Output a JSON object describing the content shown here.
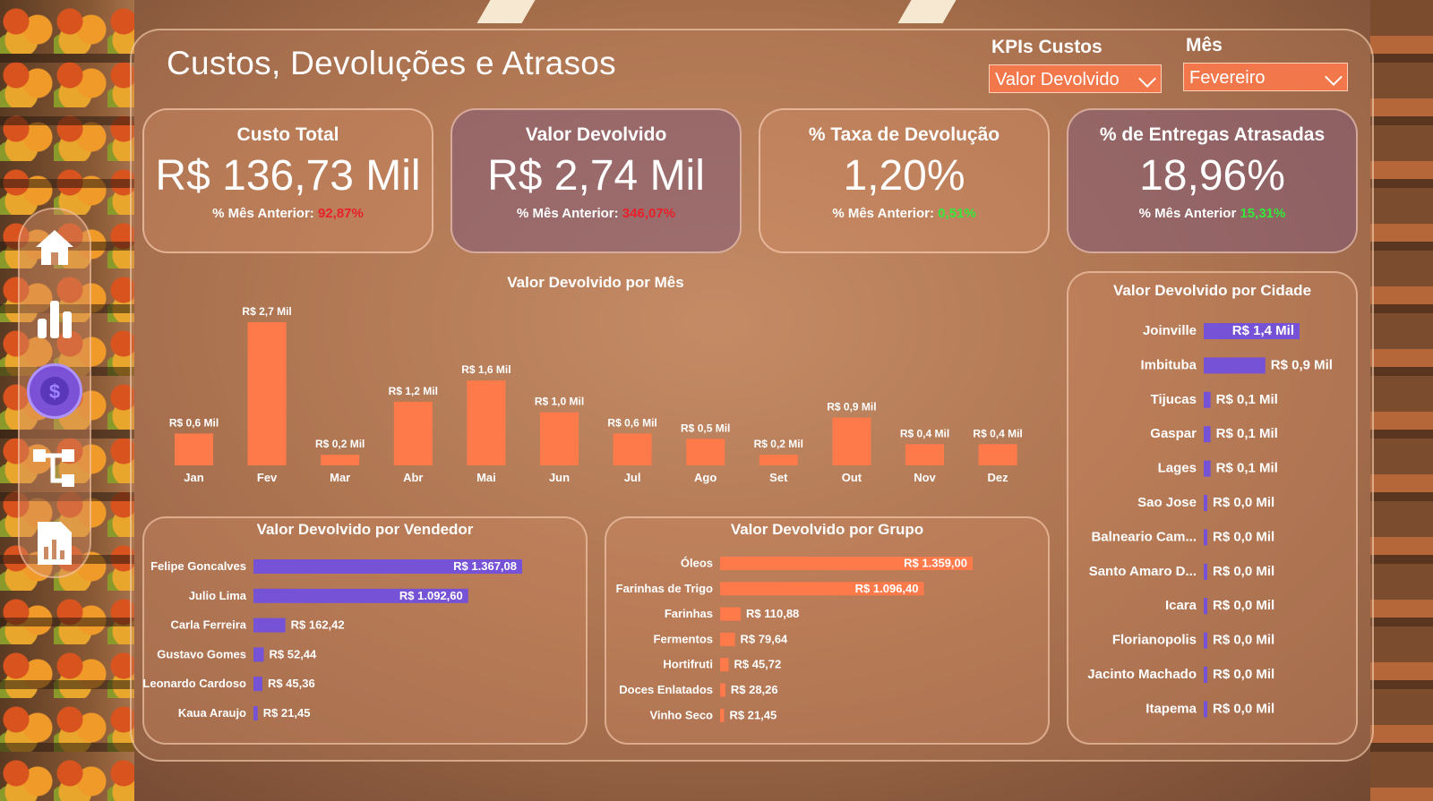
{
  "header": {
    "title": "Custos, Devoluções e Atrasos"
  },
  "slicers": {
    "kpi": {
      "label": "KPIs Custos",
      "value": "Valor Devolvido"
    },
    "mes": {
      "label": "Mês",
      "value": "Fevereiro"
    }
  },
  "nav": {
    "icons": [
      "home-icon",
      "bar-chart-icon",
      "dollar-icon",
      "hierarchy-icon",
      "report-icon"
    ],
    "active": "dollar-icon"
  },
  "kpis": [
    {
      "title": "Custo Total",
      "value": "R$ 136,73 Mil",
      "sub_label": "% Mês Anterior:",
      "sub_value": "92,87%",
      "trend": "neg"
    },
    {
      "title": "Valor Devolvido",
      "value": "R$ 2,74 Mil",
      "sub_label": "% Mês Anterior:",
      "sub_value": "346,07%",
      "trend": "neg"
    },
    {
      "title": "% Taxa de Devolução",
      "value": "1,20%",
      "sub_label": "% Mês Anterior:",
      "sub_value": "0,51%",
      "trend": "pos"
    },
    {
      "title": "% de Entregas Atrasadas",
      "value": "18,96%",
      "sub_label": "% Mês Anterior",
      "sub_value": "15,31%",
      "trend": "pos"
    }
  ],
  "colors": {
    "orange": "#ff7a4a",
    "purple": "#7652d6",
    "negative": "#e8202a",
    "positive": "#33e83a"
  },
  "chart_data": [
    {
      "type": "bar",
      "title": "Valor Devolvido por Mês",
      "categories": [
        "Jan",
        "Fev",
        "Mar",
        "Abr",
        "Mai",
        "Jun",
        "Jul",
        "Ago",
        "Set",
        "Out",
        "Nov",
        "Dez"
      ],
      "values": [
        0.6,
        2.7,
        0.2,
        1.2,
        1.6,
        1.0,
        0.6,
        0.5,
        0.2,
        0.9,
        0.4,
        0.4
      ],
      "labels": [
        "R$ 0,6 Mil",
        "R$ 2,7 Mil",
        "R$ 0,2 Mil",
        "R$ 1,2 Mil",
        "R$ 1,6 Mil",
        "R$ 1,0 Mil",
        "R$ 0,6 Mil",
        "R$ 0,5 Mil",
        "R$ 0,2 Mil",
        "R$ 0,9 Mil",
        "R$ 0,4 Mil",
        "R$ 0,4 Mil"
      ]
    },
    {
      "type": "bar",
      "orientation": "horizontal",
      "title": "Valor Devolvido por Vendedor",
      "categories": [
        "Felipe Goncalves",
        "Julio Lima",
        "Carla Ferreira",
        "Gustavo Gomes",
        "Leonardo Cardoso",
        "Kaua Araujo"
      ],
      "values": [
        1367.08,
        1092.6,
        162.42,
        52.44,
        45.36,
        21.45
      ],
      "labels": [
        "R$ 1.367,08",
        "R$ 1.092,60",
        "R$ 162,42",
        "R$ 52,44",
        "R$ 45,36",
        "R$ 21,45"
      ]
    },
    {
      "type": "bar",
      "orientation": "horizontal",
      "title": "Valor Devolvido por Grupo",
      "categories": [
        "Óleos",
        "Farinhas de Trigo",
        "Farinhas",
        "Fermentos",
        "Hortifruti",
        "Doces Enlatados",
        "Vinho Seco"
      ],
      "values": [
        1359.0,
        1096.4,
        110.88,
        79.64,
        45.72,
        28.26,
        21.45
      ],
      "labels": [
        "R$ 1.359,00",
        "R$ 1.096,40",
        "R$ 110,88",
        "R$ 79,64",
        "R$ 45,72",
        "R$ 28,26",
        "R$ 21,45"
      ]
    },
    {
      "type": "bar",
      "orientation": "horizontal",
      "title": "Valor Devolvido por Cidade",
      "categories": [
        "Joinville",
        "Imbituba",
        "Tijucas",
        "Gaspar",
        "Lages",
        "Sao Jose",
        "Balneario Cam...",
        "Santo Amaro D...",
        "Icara",
        "Florianopolis",
        "Jacinto Machado",
        "Itapema"
      ],
      "values": [
        1.4,
        0.9,
        0.1,
        0.1,
        0.1,
        0.0,
        0.0,
        0.0,
        0.0,
        0.0,
        0.0,
        0.0
      ],
      "labels": [
        "R$ 1,4 Mil",
        "R$ 0,9 Mil",
        "R$ 0,1 Mil",
        "R$ 0,1 Mil",
        "R$ 0,1 Mil",
        "R$ 0,0 Mil",
        "R$ 0,0 Mil",
        "R$ 0,0 Mil",
        "R$ 0,0 Mil",
        "R$ 0,0 Mil",
        "R$ 0,0 Mil",
        "R$ 0,0 Mil"
      ]
    }
  ]
}
